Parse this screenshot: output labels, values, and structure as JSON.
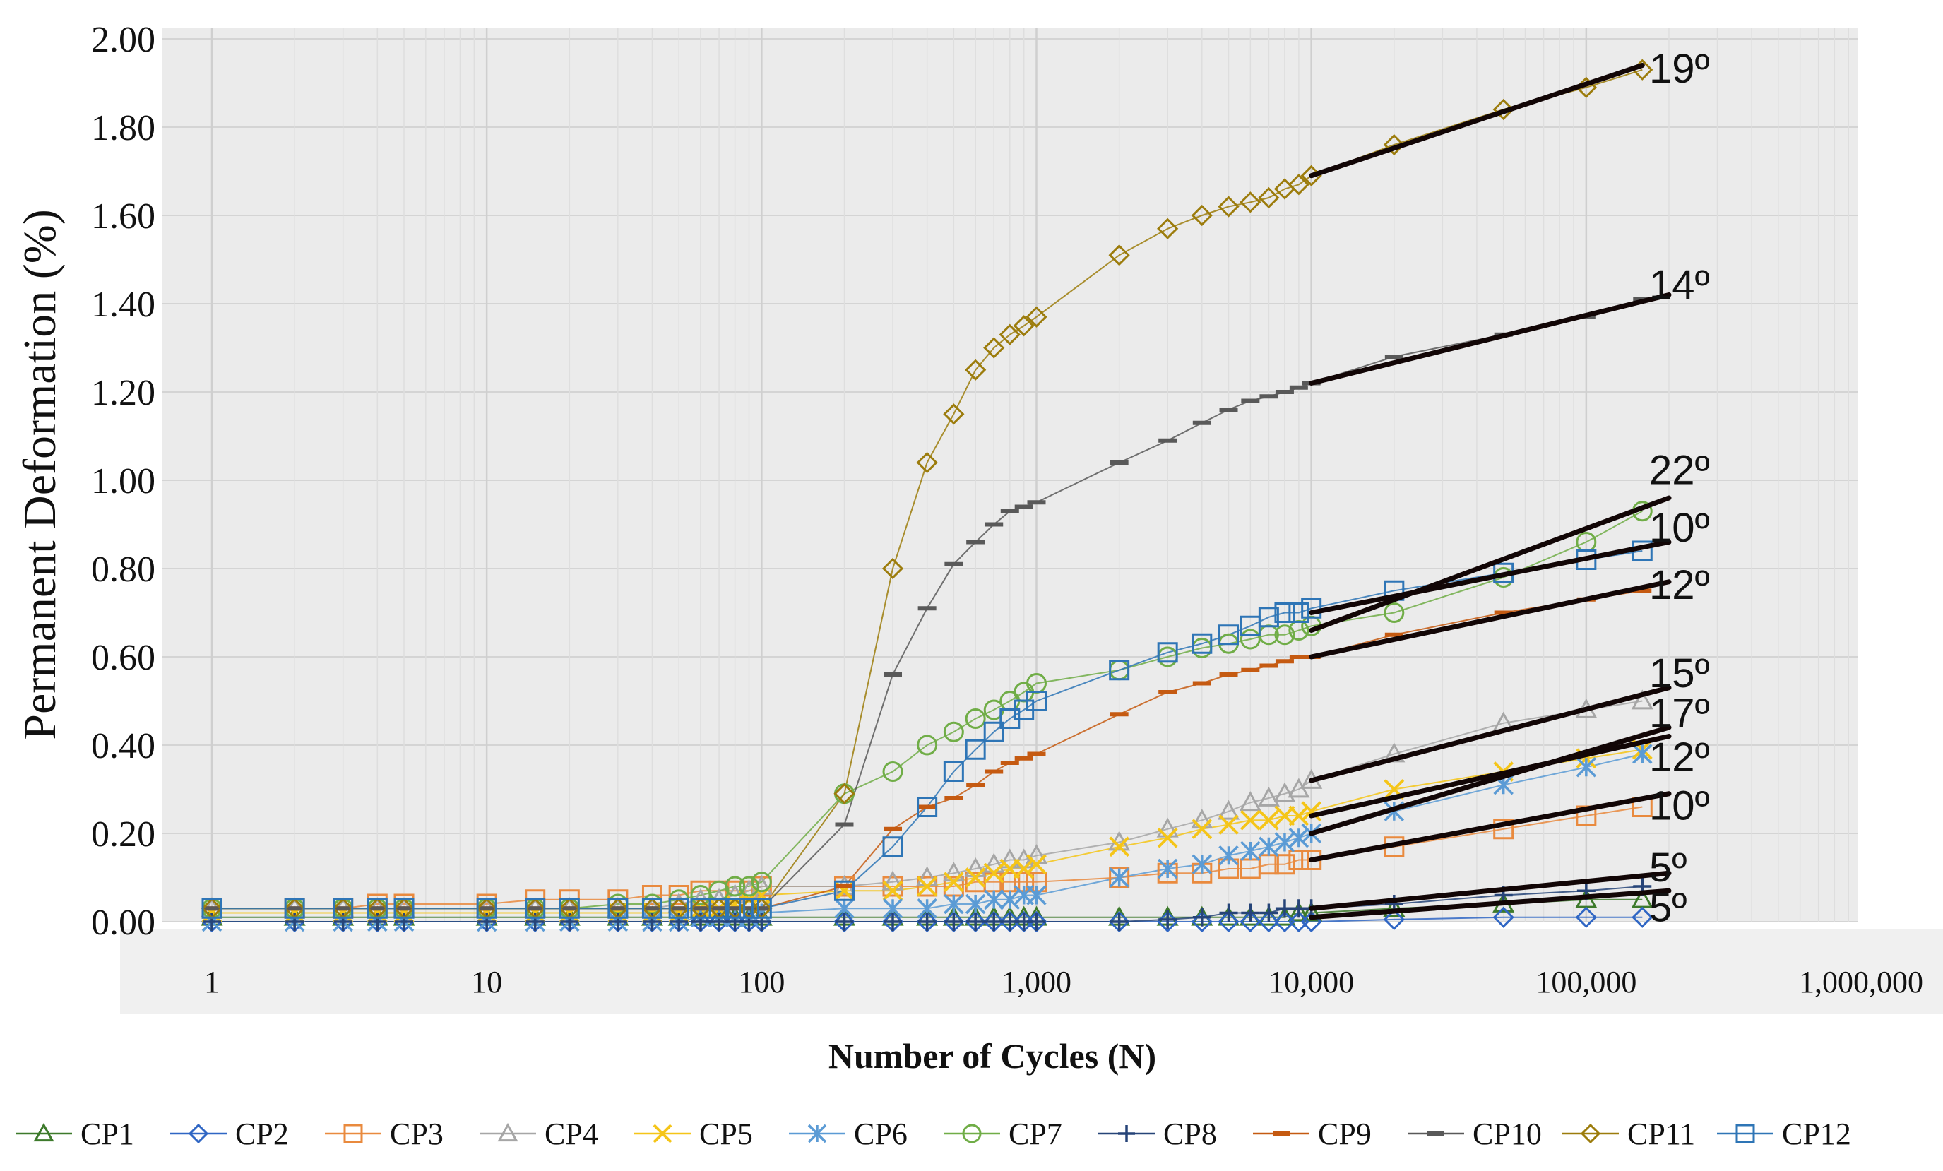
{
  "chart_data": {
    "type": "scatter",
    "xscale": "log",
    "xlim": [
      1,
      1000000
    ],
    "ylim": [
      0,
      2.0
    ],
    "xlabel": "Number of Cycles (N)",
    "ylabel": "Permanent Deformation (%)",
    "x_ticks": [
      1,
      10,
      100,
      1000,
      10000,
      100000,
      1000000
    ],
    "x_tick_labels": [
      "1",
      "10",
      "100",
      "1,000",
      "10,000",
      "100,000",
      "1,000,000"
    ],
    "y_ticks": [
      0,
      0.2,
      0.4,
      0.6,
      0.8,
      1.0,
      1.2,
      1.4,
      1.6,
      1.8,
      2.0
    ],
    "y_tick_labels": [
      "0.00",
      "0.20",
      "0.40",
      "0.60",
      "0.80",
      "1.00",
      "1.20",
      "1.40",
      "1.60",
      "1.80",
      "2.00"
    ],
    "x": [
      1,
      2,
      3,
      4,
      5,
      10,
      15,
      20,
      30,
      40,
      50,
      60,
      70,
      80,
      90,
      100,
      200,
      300,
      400,
      500,
      600,
      700,
      800,
      900,
      1000,
      2000,
      3000,
      4000,
      5000,
      6000,
      7000,
      8000,
      9000,
      10000,
      20000,
      50000,
      100000,
      160000
    ],
    "series": [
      {
        "name": "CP1",
        "marker": "triangle",
        "color": "#3d7a2b",
        "values": [
          0.01,
          0.01,
          0.01,
          0.01,
          0.01,
          0.01,
          0.01,
          0.01,
          0.01,
          0.01,
          0.01,
          0.01,
          0.01,
          0.01,
          0.01,
          0.01,
          0.01,
          0.01,
          0.01,
          0.01,
          0.01,
          0.01,
          0.01,
          0.01,
          0.01,
          0.01,
          0.01,
          0.01,
          0.01,
          0.01,
          0.01,
          0.01,
          0.02,
          0.02,
          0.03,
          0.04,
          0.05,
          0.05
        ]
      },
      {
        "name": "CP2",
        "marker": "diamond",
        "color": "#2f66c4",
        "values": [
          0.0,
          0.0,
          0.0,
          0.0,
          0.0,
          0.0,
          0.0,
          0.0,
          0.0,
          0.0,
          0.0,
          0.0,
          0.0,
          0.0,
          0.0,
          0.0,
          0.0,
          0.0,
          0.0,
          0.0,
          0.0,
          0.0,
          0.0,
          0.0,
          0.0,
          0.0,
          0.0,
          0.0,
          0.0,
          0.0,
          0.0,
          0.0,
          0.0,
          0.0,
          0.005,
          0.01,
          0.01,
          0.01
        ]
      },
      {
        "name": "CP3",
        "marker": "square",
        "color": "#e98a3e",
        "values": [
          0.03,
          0.03,
          0.03,
          0.04,
          0.04,
          0.04,
          0.05,
          0.05,
          0.05,
          0.06,
          0.06,
          0.07,
          0.07,
          0.07,
          0.07,
          0.08,
          0.08,
          0.08,
          0.08,
          0.08,
          0.09,
          0.09,
          0.09,
          0.09,
          0.09,
          0.1,
          0.11,
          0.11,
          0.12,
          0.12,
          0.13,
          0.13,
          0.14,
          0.14,
          0.17,
          0.21,
          0.24,
          0.26
        ]
      },
      {
        "name": "CP4",
        "marker": "triangle",
        "color": "#a6a6a6",
        "values": [
          0.03,
          0.03,
          0.03,
          0.03,
          0.03,
          0.03,
          0.03,
          0.03,
          0.03,
          0.03,
          0.04,
          0.05,
          0.05,
          0.06,
          0.07,
          0.08,
          0.08,
          0.09,
          0.1,
          0.11,
          0.12,
          0.13,
          0.14,
          0.14,
          0.15,
          0.18,
          0.21,
          0.23,
          0.25,
          0.27,
          0.28,
          0.29,
          0.3,
          0.32,
          0.38,
          0.45,
          0.48,
          0.5
        ]
      },
      {
        "name": "CP5",
        "marker": "cross",
        "color": "#f5c518",
        "values": [
          0.02,
          0.02,
          0.02,
          0.02,
          0.02,
          0.02,
          0.02,
          0.02,
          0.02,
          0.02,
          0.02,
          0.03,
          0.03,
          0.04,
          0.05,
          0.06,
          0.07,
          0.07,
          0.08,
          0.09,
          0.1,
          0.11,
          0.12,
          0.12,
          0.13,
          0.17,
          0.19,
          0.21,
          0.22,
          0.23,
          0.23,
          0.24,
          0.24,
          0.25,
          0.3,
          0.34,
          0.37,
          0.39
        ]
      },
      {
        "name": "CP6",
        "marker": "asterisk",
        "color": "#5b9bd5",
        "values": [
          0.0,
          0.0,
          0.0,
          0.0,
          0.0,
          0.0,
          0.0,
          0.0,
          0.0,
          0.0,
          0.0,
          0.01,
          0.01,
          0.01,
          0.01,
          0.02,
          0.03,
          0.03,
          0.03,
          0.04,
          0.04,
          0.05,
          0.05,
          0.06,
          0.06,
          0.1,
          0.12,
          0.13,
          0.15,
          0.16,
          0.17,
          0.18,
          0.19,
          0.2,
          0.25,
          0.31,
          0.35,
          0.38
        ]
      },
      {
        "name": "CP7",
        "marker": "circle",
        "color": "#70ad47",
        "values": [
          0.03,
          0.03,
          0.03,
          0.03,
          0.03,
          0.03,
          0.03,
          0.03,
          0.04,
          0.04,
          0.05,
          0.06,
          0.07,
          0.08,
          0.08,
          0.09,
          0.29,
          0.34,
          0.4,
          0.43,
          0.46,
          0.48,
          0.5,
          0.52,
          0.54,
          0.57,
          0.6,
          0.62,
          0.63,
          0.64,
          0.65,
          0.65,
          0.66,
          0.67,
          0.7,
          0.78,
          0.86,
          0.93
        ]
      },
      {
        "name": "CP8",
        "marker": "plus",
        "color": "#264478",
        "values": [
          0.0,
          0.0,
          0.0,
          0.0,
          0.0,
          0.0,
          0.0,
          0.0,
          0.0,
          0.0,
          0.0,
          0.0,
          0.0,
          0.0,
          0.0,
          0.0,
          0.0,
          0.0,
          0.0,
          0.0,
          0.0,
          0.0,
          0.0,
          0.0,
          0.0,
          0.0,
          0.005,
          0.01,
          0.02,
          0.02,
          0.02,
          0.03,
          0.03,
          0.03,
          0.04,
          0.06,
          0.07,
          0.08
        ]
      },
      {
        "name": "CP9",
        "marker": "dash",
        "color": "#c55a11",
        "values": [
          0.03,
          0.03,
          0.03,
          0.03,
          0.03,
          0.03,
          0.03,
          0.03,
          0.03,
          0.03,
          0.03,
          0.03,
          0.03,
          0.03,
          0.03,
          0.03,
          0.08,
          0.21,
          0.26,
          0.28,
          0.31,
          0.34,
          0.36,
          0.37,
          0.38,
          0.47,
          0.52,
          0.54,
          0.56,
          0.57,
          0.58,
          0.59,
          0.6,
          0.6,
          0.65,
          0.7,
          0.73,
          0.75
        ]
      },
      {
        "name": "CP10",
        "marker": "dash",
        "color": "#595959",
        "values": [
          0.03,
          0.03,
          0.03,
          0.03,
          0.03,
          0.03,
          0.03,
          0.03,
          0.03,
          0.03,
          0.03,
          0.03,
          0.03,
          0.03,
          0.03,
          0.03,
          0.22,
          0.56,
          0.71,
          0.81,
          0.86,
          0.9,
          0.93,
          0.94,
          0.95,
          1.04,
          1.09,
          1.13,
          1.16,
          1.18,
          1.19,
          1.2,
          1.21,
          1.22,
          1.28,
          1.33,
          1.37,
          1.41
        ]
      },
      {
        "name": "CP11",
        "marker": "diamond",
        "color": "#9c7c0c",
        "values": [
          0.03,
          0.03,
          0.03,
          0.03,
          0.03,
          0.03,
          0.03,
          0.03,
          0.03,
          0.03,
          0.03,
          0.03,
          0.03,
          0.03,
          0.03,
          0.03,
          0.29,
          0.8,
          1.04,
          1.15,
          1.25,
          1.3,
          1.33,
          1.35,
          1.37,
          1.51,
          1.57,
          1.6,
          1.62,
          1.63,
          1.64,
          1.66,
          1.67,
          1.69,
          1.76,
          1.84,
          1.89,
          1.93
        ]
      },
      {
        "name": "CP12",
        "marker": "square",
        "color": "#2e75b6",
        "values": [
          0.03,
          0.03,
          0.03,
          0.03,
          0.03,
          0.03,
          0.03,
          0.03,
          0.03,
          0.03,
          0.03,
          0.03,
          0.03,
          0.03,
          0.03,
          0.03,
          0.07,
          0.17,
          0.26,
          0.34,
          0.39,
          0.43,
          0.46,
          0.48,
          0.5,
          0.57,
          0.61,
          0.63,
          0.65,
          0.67,
          0.69,
          0.7,
          0.7,
          0.71,
          0.75,
          0.79,
          0.82,
          0.84
        ]
      }
    ],
    "trend_lines": [
      {
        "x": [
          10000,
          160000
        ],
        "y": [
          1.69,
          1.94
        ]
      },
      {
        "x": [
          10000,
          200000
        ],
        "y": [
          1.22,
          1.42
        ]
      },
      {
        "x": [
          10000,
          200000
        ],
        "y": [
          0.66,
          0.96
        ]
      },
      {
        "x": [
          10000,
          200000
        ],
        "y": [
          0.7,
          0.86
        ]
      },
      {
        "x": [
          10000,
          200000
        ],
        "y": [
          0.6,
          0.77
        ]
      },
      {
        "x": [
          10000,
          200000
        ],
        "y": [
          0.32,
          0.53
        ]
      },
      {
        "x": [
          10000,
          200000
        ],
        "y": [
          0.2,
          0.44
        ]
      },
      {
        "x": [
          10000,
          200000
        ],
        "y": [
          0.24,
          0.42
        ]
      },
      {
        "x": [
          10000,
          200000
        ],
        "y": [
          0.14,
          0.29
        ]
      },
      {
        "x": [
          10000,
          200000
        ],
        "y": [
          0.03,
          0.11
        ]
      },
      {
        "x": [
          10000,
          200000
        ],
        "y": [
          0.01,
          0.07
        ]
      }
    ],
    "annotations": [
      {
        "text": "19º",
        "y": 1.93
      },
      {
        "text": "14º",
        "y": 1.44
      },
      {
        "text": "22º",
        "y": 1.02
      },
      {
        "text": "10º",
        "y": 0.89
      },
      {
        "text": "12º",
        "y": 0.76
      },
      {
        "text": "15º",
        "y": 0.56
      },
      {
        "text": "17º",
        "y": 0.47
      },
      {
        "text": "12º",
        "y": 0.37
      },
      {
        "text": "10º",
        "y": 0.26
      },
      {
        "text": "5º",
        "y": 0.12
      },
      {
        "text": "5º",
        "y": 0.03
      }
    ],
    "grid": true,
    "legend": "bottom"
  }
}
